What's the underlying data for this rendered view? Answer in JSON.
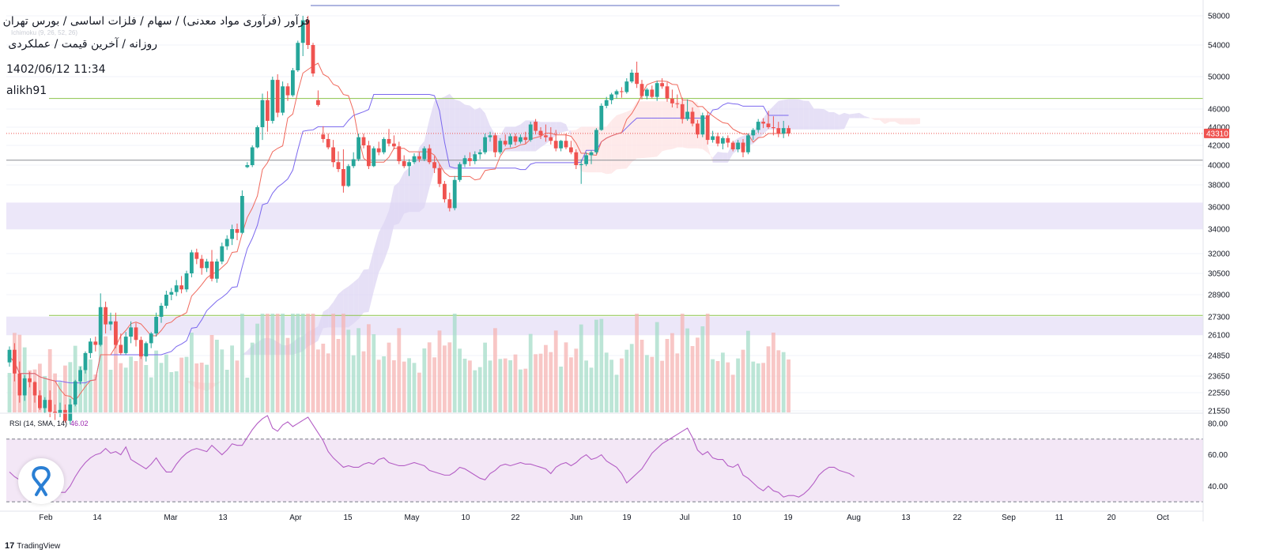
{
  "header": {
    "line1": "فرآور (فرآوری مواد معدنی) / سهام / فلزات اساسی / بورس تهران",
    "line2": "روزانه / آخرین قیمت / عملکردی",
    "line3": "1402/06/12 11:34",
    "author": "alikh91",
    "indicator_faint": "Ichimoku (9, 26, 52, 26)"
  },
  "rsi": {
    "label": "RSI (14, SMA, 14)",
    "value": "46.02",
    "ticks": [
      "80.00",
      "60.00",
      "40.00"
    ]
  },
  "branding": {
    "name": "TradingView",
    "mark": "17"
  },
  "colors": {
    "up": "#26a69a",
    "down": "#ef5350",
    "kijun": "#7b68ee",
    "tenkan": "#f06a5e",
    "support_band": "#ece7f9",
    "cloud_purple": "#ddd6f3",
    "cloud_red": "#fde3e3",
    "green_line": "#8bc34a",
    "rsi_line": "#b45ec5",
    "rsi_band": "#f3e7f6",
    "price_tag": "#ef5350"
  },
  "chart_data": {
    "type": "candlestick",
    "x_ticks": [
      "Feb",
      "14",
      "Mar",
      "13",
      "Apr",
      "15",
      "May",
      "10",
      "22",
      "Jun",
      "19",
      "Jul",
      "10",
      "19",
      "Aug",
      "13",
      "22",
      "Sep",
      "11",
      "20",
      "Oct"
    ],
    "y_ticks": [
      58000,
      54000,
      50000,
      46000,
      44000,
      42000,
      40000,
      38000,
      36000,
      34000,
      32000,
      30500,
      28900,
      27300,
      26100,
      24850,
      23650,
      22550,
      21550
    ],
    "last_price": 43310,
    "horizontal_levels": [
      {
        "price": 47300,
        "style": "green"
      },
      {
        "price": 27400,
        "style": "green"
      },
      {
        "price": 40500,
        "style": "gray"
      }
    ],
    "support_zones": [
      [
        34000,
        36400
      ],
      [
        26100,
        27300
      ]
    ],
    "candles": [
      [
        24450,
        25400,
        24200,
        25200
      ],
      [
        25200,
        25600,
        23300,
        23800
      ],
      [
        23800,
        24500,
        22000,
        22400
      ],
      [
        22400,
        23700,
        22100,
        23500
      ],
      [
        23500,
        23900,
        22900,
        23250
      ],
      [
        23250,
        23300,
        22000,
        22400
      ],
      [
        22400,
        22700,
        21600,
        21700
      ],
      [
        21700,
        22300,
        21400,
        22150
      ],
      [
        22150,
        22700,
        21200,
        21500
      ],
      [
        21500,
        21900,
        21050,
        21400
      ],
      [
        21400,
        22000,
        21200,
        21600
      ],
      [
        21600,
        21900,
        20900,
        21000
      ],
      [
        21000,
        22200,
        20800,
        21900
      ],
      [
        21900,
        23400,
        21800,
        23300
      ],
      [
        23300,
        24200,
        23100,
        24000
      ],
      [
        24000,
        25100,
        23800,
        25000
      ],
      [
        25000,
        25900,
        24700,
        25700
      ],
      [
        25700,
        26000,
        25100,
        25500
      ],
      [
        25500,
        29000,
        25400,
        28000
      ],
      [
        28000,
        28400,
        26200,
        26800
      ],
      [
        26800,
        27600,
        26400,
        27000
      ],
      [
        27000,
        27600,
        25300,
        25500
      ],
      [
        25500,
        26200,
        24900,
        25000
      ],
      [
        25000,
        26300,
        24900,
        26000
      ],
      [
        26000,
        27000,
        25600,
        26600
      ],
      [
        26600,
        26900,
        25400,
        25800
      ],
      [
        25800,
        26000,
        24650,
        24800
      ],
      [
        24800,
        25700,
        24500,
        25600
      ],
      [
        25600,
        26300,
        25300,
        26200
      ],
      [
        26200,
        27600,
        26000,
        27300
      ],
      [
        27300,
        28300,
        26900,
        28100
      ],
      [
        28100,
        29200,
        27900,
        28900
      ],
      [
        28900,
        29400,
        28500,
        29100
      ],
      [
        29100,
        30000,
        28800,
        29600
      ],
      [
        29600,
        30300,
        29000,
        29300
      ],
      [
        29300,
        30700,
        29100,
        30500
      ],
      [
        30500,
        32300,
        30200,
        32100
      ],
      [
        32100,
        32400,
        31200,
        31600
      ],
      [
        31600,
        31900,
        30400,
        30900
      ],
      [
        30900,
        31600,
        30600,
        31400
      ],
      [
        31400,
        32300,
        29900,
        30100
      ],
      [
        30100,
        31600,
        29800,
        31400
      ],
      [
        31400,
        32900,
        31200,
        32600
      ],
      [
        32600,
        33500,
        32300,
        33200
      ],
      [
        33200,
        34400,
        32700,
        34000
      ],
      [
        34000,
        34500,
        33100,
        33700
      ],
      [
        33700,
        37500,
        33600,
        37000
      ],
      [
        39800,
        40300,
        39700,
        40000
      ],
      [
        40000,
        42000,
        39800,
        41800
      ],
      [
        41800,
        44200,
        41700,
        44000
      ],
      [
        44000,
        47900,
        42600,
        47100
      ],
      [
        47100,
        48200,
        43500,
        44700
      ],
      [
        44700,
        50000,
        44400,
        49600
      ],
      [
        49600,
        50300,
        45100,
        45600
      ],
      [
        45600,
        49400,
        45300,
        48800
      ],
      [
        48800,
        49200,
        47000,
        47700
      ],
      [
        47700,
        51100,
        47500,
        50800
      ],
      [
        50800,
        54600,
        50600,
        54300
      ],
      [
        54300,
        58300,
        52600,
        57400
      ],
      [
        57400,
        58000,
        53500,
        54000
      ],
      [
        54000,
        54300,
        50000,
        50400
      ],
      [
        47100,
        48300,
        46300,
        46500
      ],
      [
        43200,
        44100,
        42300,
        42700
      ],
      [
        42700,
        43300,
        41600,
        41800
      ],
      [
        41800,
        42600,
        39800,
        40300
      ],
      [
        40300,
        41400,
        39300,
        39600
      ],
      [
        39600,
        41600,
        37300,
        37900
      ],
      [
        37900,
        40100,
        37800,
        39900
      ],
      [
        39900,
        41300,
        39700,
        40600
      ],
      [
        40600,
        43300,
        40400,
        42900
      ],
      [
        42900,
        43300,
        41700,
        42000
      ],
      [
        42000,
        42500,
        39600,
        39900
      ],
      [
        39900,
        41900,
        39800,
        41700
      ],
      [
        41700,
        42400,
        41000,
        41300
      ],
      [
        41300,
        42900,
        41100,
        42700
      ],
      [
        42700,
        43800,
        41900,
        42200
      ],
      [
        42200,
        43100,
        41600,
        41900
      ],
      [
        41900,
        42400,
        40100,
        40400
      ],
      [
        40400,
        41000,
        39700,
        39900
      ],
      [
        39900,
        40600,
        38900,
        40300
      ],
      [
        40300,
        41200,
        40100,
        40900
      ],
      [
        40900,
        41300,
        40300,
        40600
      ],
      [
        40600,
        41900,
        40400,
        41700
      ],
      [
        41700,
        42100,
        40100,
        40300
      ],
      [
        40300,
        40900,
        39200,
        39700
      ],
      [
        39700,
        40100,
        37800,
        38100
      ],
      [
        38100,
        38400,
        36400,
        36700
      ],
      [
        36700,
        37300,
        35600,
        35900
      ],
      [
        35900,
        38900,
        35700,
        38500
      ],
      [
        38500,
        40300,
        38300,
        40100
      ],
      [
        40100,
        41000,
        39800,
        40700
      ],
      [
        40700,
        41300,
        39900,
        40400
      ],
      [
        40400,
        41400,
        40100,
        41100
      ],
      [
        41100,
        41600,
        40600,
        41300
      ],
      [
        41300,
        43300,
        41100,
        42900
      ],
      [
        42900,
        43500,
        42400,
        43100
      ],
      [
        43100,
        43400,
        40800,
        41300
      ],
      [
        41300,
        42800,
        41100,
        42500
      ],
      [
        42500,
        43200,
        41900,
        42100
      ],
      [
        42100,
        43300,
        41800,
        43000
      ],
      [
        43000,
        43300,
        42000,
        42400
      ],
      [
        42400,
        43200,
        42200,
        42900
      ],
      [
        42900,
        43500,
        42200,
        42600
      ],
      [
        42600,
        44600,
        42400,
        44300
      ],
      [
        44600,
        44900,
        43200,
        43600
      ],
      [
        43600,
        44000,
        42700,
        43100
      ],
      [
        43100,
        44300,
        42400,
        42900
      ],
      [
        42900,
        44000,
        42100,
        42500
      ],
      [
        42500,
        43700,
        41400,
        41700
      ],
      [
        41700,
        42600,
        41400,
        42500
      ],
      [
        42500,
        43300,
        41600,
        41800
      ],
      [
        41800,
        42500,
        41100,
        41300
      ],
      [
        41300,
        41600,
        39600,
        40000
      ],
      [
        40000,
        40600,
        38100,
        40100
      ],
      [
        40100,
        41300,
        39900,
        41000
      ],
      [
        41000,
        41500,
        40100,
        41300
      ],
      [
        41300,
        43900,
        41100,
        43700
      ],
      [
        43700,
        46700,
        43600,
        46400
      ],
      [
        46400,
        47500,
        46100,
        47100
      ],
      [
        47100,
        48000,
        46600,
        47800
      ],
      [
        47800,
        48400,
        47300,
        48200
      ],
      [
        48200,
        48700,
        47400,
        48100
      ],
      [
        48100,
        49800,
        47900,
        49400
      ],
      [
        49400,
        50900,
        49200,
        50500
      ],
      [
        50500,
        51900,
        48600,
        49100
      ],
      [
        49100,
        49600,
        47200,
        47600
      ],
      [
        47600,
        48600,
        47200,
        48400
      ],
      [
        48400,
        48900,
        47300,
        47500
      ],
      [
        47500,
        49500,
        47000,
        49200
      ],
      [
        49200,
        49800,
        48500,
        48800
      ],
      [
        48800,
        49300,
        46900,
        47300
      ],
      [
        47300,
        48400,
        46200,
        46700
      ],
      [
        46700,
        47800,
        46100,
        46600
      ],
      [
        46600,
        47400,
        44400,
        44900
      ],
      [
        44900,
        47200,
        44700,
        45700
      ],
      [
        45700,
        46200,
        44100,
        44400
      ],
      [
        44400,
        44800,
        42800,
        43200
      ],
      [
        43200,
        45600,
        42900,
        45300
      ],
      [
        45300,
        45700,
        42100,
        42600
      ],
      [
        42600,
        43600,
        42300,
        43000
      ],
      [
        43000,
        43400,
        41900,
        42200
      ],
      [
        42200,
        43000,
        41600,
        42800
      ],
      [
        42800,
        43100,
        41800,
        42300
      ],
      [
        42300,
        42500,
        41400,
        41600
      ],
      [
        41600,
        42600,
        41300,
        42300
      ],
      [
        42300,
        42700,
        40800,
        41300
      ],
      [
        41300,
        43300,
        41100,
        43100
      ],
      [
        43100,
        43900,
        42600,
        43700
      ],
      [
        43700,
        44900,
        43400,
        44600
      ],
      [
        44600,
        45000,
        43900,
        44400
      ],
      [
        44400,
        45800,
        43800,
        44000
      ],
      [
        44000,
        45200,
        43100,
        43900
      ],
      [
        43900,
        44600,
        42900,
        43300
      ],
      [
        43300,
        44700,
        42800,
        43900
      ],
      [
        43900,
        44200,
        43000,
        43310
      ]
    ],
    "rsi_values": [
      49,
      46,
      44,
      50,
      52,
      47,
      43,
      41,
      39,
      38,
      36,
      36,
      40,
      46,
      51,
      55,
      58,
      60,
      61,
      64,
      61,
      62,
      60,
      65,
      57,
      55,
      53,
      51,
      54,
      58,
      53,
      49,
      49,
      54,
      58,
      61,
      63,
      64,
      63,
      62,
      66,
      63,
      60,
      63,
      67,
      66,
      66,
      71,
      76,
      80,
      83,
      85,
      77,
      75,
      79,
      81,
      78,
      80,
      82,
      84,
      79,
      74,
      69,
      62,
      58,
      55,
      52,
      53,
      52,
      52,
      54,
      55,
      54,
      57,
      58,
      55,
      54,
      53,
      53,
      54,
      55,
      54,
      53,
      50,
      49,
      48,
      47,
      47,
      49,
      52,
      51,
      49,
      47,
      45,
      44,
      48,
      50,
      53,
      54,
      53,
      54,
      55,
      54,
      54,
      53,
      52,
      51,
      48,
      52,
      54,
      55,
      53,
      55,
      58,
      60,
      57,
      58,
      60,
      56,
      54,
      52,
      48,
      42,
      45,
      48,
      51,
      56,
      61,
      64,
      67,
      69,
      71,
      73,
      75,
      77,
      71,
      63,
      60,
      62,
      58,
      57,
      57,
      53,
      52,
      54,
      47,
      45,
      42,
      39,
      37,
      40,
      37,
      36,
      33,
      34,
      34,
      33,
      35,
      38,
      42,
      47,
      50,
      52,
      52,
      50,
      49,
      48,
      46.02
    ],
    "rsi_lines": {
      "upper": 70,
      "lower": 30
    }
  }
}
